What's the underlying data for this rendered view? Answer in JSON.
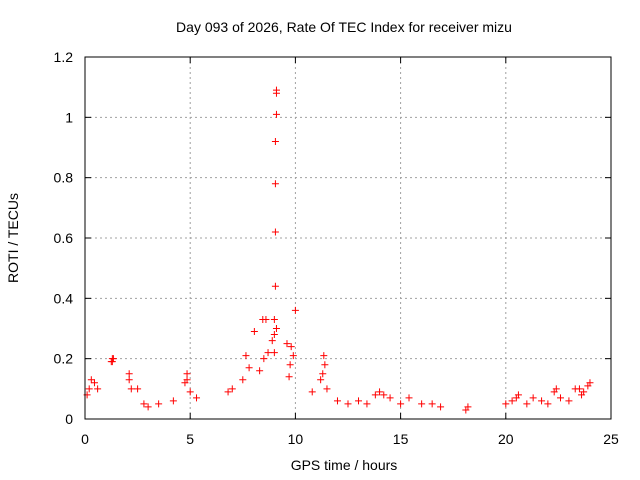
{
  "chart_data": {
    "type": "scatter",
    "title": "Day 093 of 2026, Rate Of TEC Index for receiver mizu",
    "xlabel": "GPS time / hours",
    "ylabel": "ROTI / TECUs",
    "xlim": [
      0,
      25
    ],
    "ylim": [
      0,
      1.2
    ],
    "xticks": [
      0,
      5,
      10,
      15,
      20,
      25
    ],
    "yticks": [
      0,
      0.2,
      0.4,
      0.6,
      0.8,
      1,
      1.2
    ],
    "xtick_labels": [
      "0",
      "5",
      "10",
      "15",
      "20",
      "25"
    ],
    "ytick_labels": [
      "0",
      "0.2",
      "0.4",
      "0.6",
      "0.8",
      "1",
      "1.2"
    ],
    "grid": true,
    "marker": "plus",
    "color": "#ff0000",
    "series": [
      {
        "points": [
          [
            9.1,
            1.09
          ],
          [
            9.1,
            1.08
          ],
          [
            9.1,
            1.01
          ],
          [
            9.05,
            0.92
          ],
          [
            9.05,
            0.78
          ],
          [
            9.05,
            0.62
          ],
          [
            9.05,
            0.44
          ],
          [
            8.45,
            0.33
          ],
          [
            9.0,
            0.33
          ],
          [
            10.0,
            0.36
          ],
          [
            8.6,
            0.33
          ],
          [
            8.05,
            0.29
          ],
          [
            9.1,
            0.3
          ],
          [
            9.0,
            0.28
          ],
          [
            8.9,
            0.26
          ],
          [
            9.0,
            0.22
          ],
          [
            9.6,
            0.25
          ],
          [
            9.8,
            0.24
          ],
          [
            9.9,
            0.21
          ],
          [
            9.75,
            0.18
          ],
          [
            9.7,
            0.14
          ],
          [
            8.5,
            0.2
          ],
          [
            8.7,
            0.22
          ],
          [
            8.3,
            0.16
          ],
          [
            7.65,
            0.21
          ],
          [
            7.8,
            0.17
          ],
          [
            7.5,
            0.13
          ],
          [
            7.0,
            0.1
          ],
          [
            6.8,
            0.09
          ],
          [
            1.3,
            0.2
          ],
          [
            1.3,
            0.19
          ],
          [
            1.25,
            0.19
          ],
          [
            1.35,
            0.2
          ],
          [
            2.1,
            0.15
          ],
          [
            2.1,
            0.13
          ],
          [
            2.2,
            0.1
          ],
          [
            2.5,
            0.1
          ],
          [
            0.3,
            0.13
          ],
          [
            0.45,
            0.12
          ],
          [
            0.2,
            0.1
          ],
          [
            0.6,
            0.1
          ],
          [
            0.1,
            0.08
          ],
          [
            4.85,
            0.15
          ],
          [
            4.85,
            0.13
          ],
          [
            4.75,
            0.12
          ],
          [
            5.0,
            0.09
          ],
          [
            5.3,
            0.07
          ],
          [
            3.5,
            0.05
          ],
          [
            4.2,
            0.06
          ],
          [
            3.0,
            0.04
          ],
          [
            2.8,
            0.05
          ],
          [
            11.35,
            0.21
          ],
          [
            11.4,
            0.18
          ],
          [
            11.3,
            0.15
          ],
          [
            11.2,
            0.13
          ],
          [
            11.5,
            0.1
          ],
          [
            10.8,
            0.09
          ],
          [
            12.0,
            0.06
          ],
          [
            12.5,
            0.05
          ],
          [
            13.0,
            0.06
          ],
          [
            13.4,
            0.05
          ],
          [
            13.8,
            0.08
          ],
          [
            14.0,
            0.09
          ],
          [
            14.2,
            0.08
          ],
          [
            14.5,
            0.07
          ],
          [
            15.4,
            0.07
          ],
          [
            15.0,
            0.05
          ],
          [
            16.0,
            0.05
          ],
          [
            16.5,
            0.05
          ],
          [
            16.9,
            0.04
          ],
          [
            18.2,
            0.04
          ],
          [
            18.1,
            0.03
          ],
          [
            20.0,
            0.05
          ],
          [
            20.3,
            0.06
          ],
          [
            20.6,
            0.08
          ],
          [
            20.5,
            0.07
          ],
          [
            21.0,
            0.05
          ],
          [
            21.3,
            0.07
          ],
          [
            21.7,
            0.06
          ],
          [
            22.0,
            0.05
          ],
          [
            22.3,
            0.09
          ],
          [
            22.4,
            0.1
          ],
          [
            22.6,
            0.07
          ],
          [
            23.0,
            0.06
          ],
          [
            23.3,
            0.1
          ],
          [
            23.5,
            0.1
          ],
          [
            23.7,
            0.09
          ],
          [
            23.9,
            0.11
          ],
          [
            24.0,
            0.12
          ],
          [
            23.6,
            0.08
          ]
        ]
      }
    ]
  }
}
